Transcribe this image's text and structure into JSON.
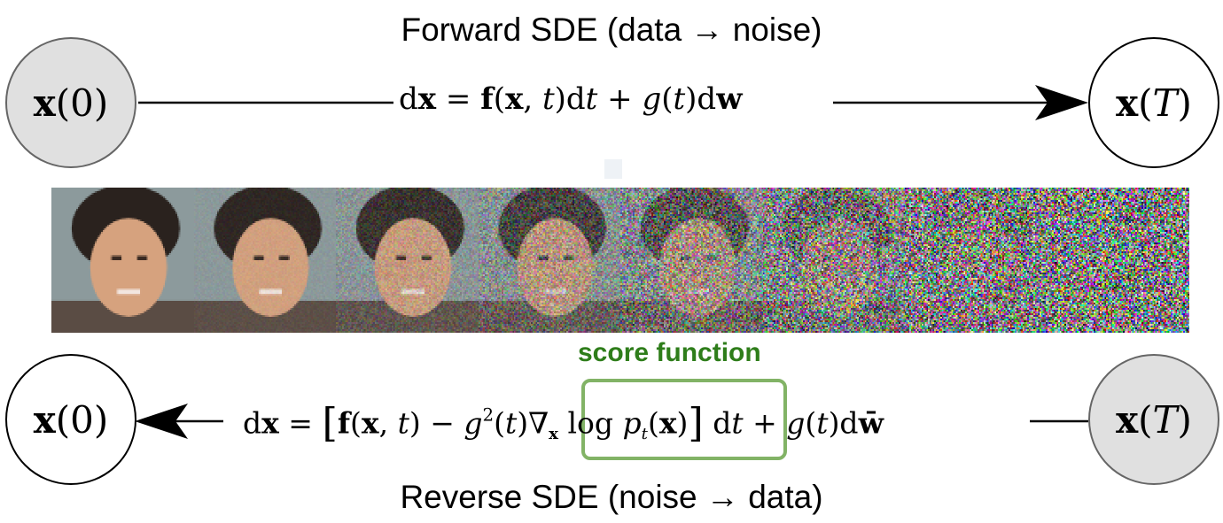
{
  "forward": {
    "title": "Forward SDE (data → noise)",
    "start_node": {
      "symbol": "x",
      "arg": "(0)"
    },
    "end_node": {
      "symbol": "x",
      "open": "(",
      "arg": "T",
      "close": ")"
    }
  },
  "reverse": {
    "title": "Reverse SDE (noise → data)",
    "start_node": {
      "symbol": "x",
      "open": "(",
      "arg": "T",
      "close": ")"
    },
    "end_node": {
      "symbol": "x",
      "arg": "(0)"
    }
  },
  "score_label": "score function",
  "image_strip": {
    "frame_count": 8,
    "noise_levels": [
      0.0,
      0.06,
      0.2,
      0.38,
      0.58,
      0.78,
      0.92,
      1.0
    ]
  },
  "colors": {
    "score_box": "#82b366",
    "score_text": "#2e7d1a",
    "filled_node": "#e0e0e0"
  }
}
